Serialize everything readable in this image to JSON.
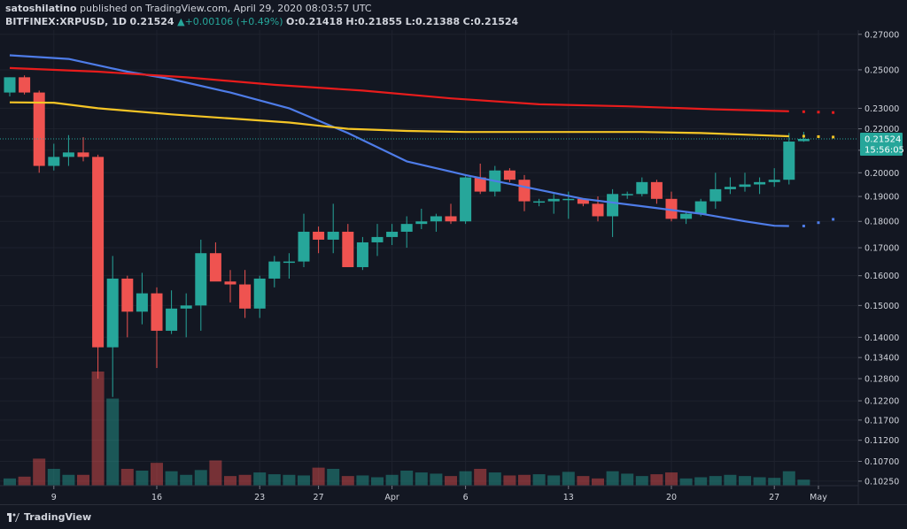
{
  "header": {
    "author": "satoshilatino",
    "published": "published on TradingView.com, April 29, 2020 08:03:57 UTC",
    "symbol": "BITFINEX:XRPUSD, 1D",
    "last": "0.21524",
    "change_arrow": "▲",
    "change": "+0.00106 (+0.49%)",
    "o_label": "O:",
    "o": "0.21418",
    "h_label": "H:",
    "h": "0.21855",
    "l_label": "L:",
    "l": "0.21388",
    "c_label": "C:",
    "c": "0.21524"
  },
  "footer": {
    "brand": "TradingView",
    "brand_icon": "tradingview-logo-icon"
  },
  "price_tag": {
    "price": "0.21524",
    "countdown": "15:56:05"
  },
  "colors": {
    "background": "#131722",
    "up": "#26a69a",
    "down": "#ef5350",
    "ma_fast": "#4e7ce8",
    "ma_mid": "#f5c526",
    "ma_slow": "#e81c1c",
    "grid": "#1e222d",
    "text": "#d1d4dc"
  },
  "chart_data": {
    "type": "candlestick",
    "price_axis": {
      "range": [
        0.1015,
        0.2725
      ],
      "scale": "log",
      "ticks": [
        "0.27000",
        "0.25000",
        "0.23000",
        "0.22000",
        "0.21000",
        "0.20000",
        "0.19000",
        "0.18000",
        "0.17000",
        "0.16000",
        "0.15000",
        "0.14000",
        "0.13400",
        "0.12800",
        "0.12200",
        "0.11700",
        "0.11200",
        "0.10700",
        "0.10250"
      ]
    },
    "time_axis": {
      "labels": [
        {
          "label": "9",
          "index": 3
        },
        {
          "label": "16",
          "index": 10
        },
        {
          "label": "23",
          "index": 17
        },
        {
          "label": "27",
          "index": 21
        },
        {
          "label": "Apr",
          "index": 26
        },
        {
          "label": "6",
          "index": 31
        },
        {
          "label": "13",
          "index": 38
        },
        {
          "label": "20",
          "index": 45
        },
        {
          "label": "27",
          "index": 52
        },
        {
          "label": "May",
          "index": 55
        }
      ],
      "bars_visible": 57
    },
    "candles": [
      {
        "o": 0.238,
        "h": 0.246,
        "l": 0.236,
        "c": 0.246
      },
      {
        "o": 0.246,
        "h": 0.247,
        "l": 0.237,
        "c": 0.238
      },
      {
        "o": 0.238,
        "h": 0.239,
        "l": 0.2,
        "c": 0.203
      },
      {
        "o": 0.203,
        "h": 0.213,
        "l": 0.201,
        "c": 0.207
      },
      {
        "o": 0.207,
        "h": 0.217,
        "l": 0.203,
        "c": 0.209
      },
      {
        "o": 0.209,
        "h": 0.216,
        "l": 0.205,
        "c": 0.207
      },
      {
        "o": 0.207,
        "h": 0.208,
        "l": 0.128,
        "c": 0.137
      },
      {
        "o": 0.137,
        "h": 0.167,
        "l": 0.123,
        "c": 0.159
      },
      {
        "o": 0.159,
        "h": 0.16,
        "l": 0.14,
        "c": 0.148
      },
      {
        "o": 0.148,
        "h": 0.161,
        "l": 0.144,
        "c": 0.154
      },
      {
        "o": 0.154,
        "h": 0.156,
        "l": 0.131,
        "c": 0.142
      },
      {
        "o": 0.142,
        "h": 0.155,
        "l": 0.141,
        "c": 0.149
      },
      {
        "o": 0.149,
        "h": 0.154,
        "l": 0.14,
        "c": 0.15
      },
      {
        "o": 0.15,
        "h": 0.173,
        "l": 0.142,
        "c": 0.168
      },
      {
        "o": 0.168,
        "h": 0.172,
        "l": 0.159,
        "c": 0.158
      },
      {
        "o": 0.158,
        "h": 0.162,
        "l": 0.151,
        "c": 0.157
      },
      {
        "o": 0.157,
        "h": 0.162,
        "l": 0.146,
        "c": 0.149
      },
      {
        "o": 0.149,
        "h": 0.16,
        "l": 0.146,
        "c": 0.159
      },
      {
        "o": 0.159,
        "h": 0.167,
        "l": 0.156,
        "c": 0.165
      },
      {
        "o": 0.165,
        "h": 0.168,
        "l": 0.159,
        "c": 0.165
      },
      {
        "o": 0.165,
        "h": 0.183,
        "l": 0.163,
        "c": 0.176
      },
      {
        "o": 0.176,
        "h": 0.178,
        "l": 0.168,
        "c": 0.173
      },
      {
        "o": 0.173,
        "h": 0.187,
        "l": 0.168,
        "c": 0.176
      },
      {
        "o": 0.176,
        "h": 0.179,
        "l": 0.163,
        "c": 0.163
      },
      {
        "o": 0.163,
        "h": 0.174,
        "l": 0.162,
        "c": 0.172
      },
      {
        "o": 0.172,
        "h": 0.179,
        "l": 0.167,
        "c": 0.174
      },
      {
        "o": 0.174,
        "h": 0.179,
        "l": 0.171,
        "c": 0.176
      },
      {
        "o": 0.176,
        "h": 0.182,
        "l": 0.17,
        "c": 0.179
      },
      {
        "o": 0.179,
        "h": 0.185,
        "l": 0.177,
        "c": 0.18
      },
      {
        "o": 0.18,
        "h": 0.183,
        "l": 0.176,
        "c": 0.182
      },
      {
        "o": 0.182,
        "h": 0.187,
        "l": 0.179,
        "c": 0.18
      },
      {
        "o": 0.18,
        "h": 0.199,
        "l": 0.179,
        "c": 0.198
      },
      {
        "o": 0.198,
        "h": 0.204,
        "l": 0.191,
        "c": 0.192
      },
      {
        "o": 0.192,
        "h": 0.203,
        "l": 0.19,
        "c": 0.201
      },
      {
        "o": 0.201,
        "h": 0.202,
        "l": 0.196,
        "c": 0.197
      },
      {
        "o": 0.197,
        "h": 0.199,
        "l": 0.184,
        "c": 0.188
      },
      {
        "o": 0.188,
        "h": 0.189,
        "l": 0.186,
        "c": 0.188
      },
      {
        "o": 0.188,
        "h": 0.191,
        "l": 0.183,
        "c": 0.189
      },
      {
        "o": 0.189,
        "h": 0.192,
        "l": 0.181,
        "c": 0.189
      },
      {
        "o": 0.189,
        "h": 0.189,
        "l": 0.186,
        "c": 0.187
      },
      {
        "o": 0.187,
        "h": 0.19,
        "l": 0.18,
        "c": 0.182
      },
      {
        "o": 0.182,
        "h": 0.193,
        "l": 0.174,
        "c": 0.191
      },
      {
        "o": 0.191,
        "h": 0.192,
        "l": 0.189,
        "c": 0.191
      },
      {
        "o": 0.191,
        "h": 0.198,
        "l": 0.19,
        "c": 0.196
      },
      {
        "o": 0.196,
        "h": 0.197,
        "l": 0.187,
        "c": 0.189
      },
      {
        "o": 0.189,
        "h": 0.192,
        "l": 0.18,
        "c": 0.181
      },
      {
        "o": 0.181,
        "h": 0.184,
        "l": 0.179,
        "c": 0.183
      },
      {
        "o": 0.183,
        "h": 0.189,
        "l": 0.182,
        "c": 0.188
      },
      {
        "o": 0.188,
        "h": 0.2,
        "l": 0.185,
        "c": 0.193
      },
      {
        "o": 0.193,
        "h": 0.198,
        "l": 0.191,
        "c": 0.194
      },
      {
        "o": 0.194,
        "h": 0.2,
        "l": 0.192,
        "c": 0.195
      },
      {
        "o": 0.195,
        "h": 0.198,
        "l": 0.191,
        "c": 0.196
      },
      {
        "o": 0.196,
        "h": 0.202,
        "l": 0.194,
        "c": 0.197
      },
      {
        "o": 0.197,
        "h": 0.218,
        "l": 0.195,
        "c": 0.214
      },
      {
        "o": 0.21418,
        "h": 0.21855,
        "l": 0.21388,
        "c": 0.21524
      }
    ],
    "volume": [
      0.12,
      0.15,
      0.45,
      0.28,
      0.18,
      0.18,
      1.9,
      1.45,
      0.28,
      0.25,
      0.38,
      0.24,
      0.18,
      0.26,
      0.42,
      0.16,
      0.18,
      0.22,
      0.19,
      0.18,
      0.17,
      0.3,
      0.28,
      0.16,
      0.17,
      0.14,
      0.18,
      0.25,
      0.22,
      0.2,
      0.16,
      0.24,
      0.28,
      0.22,
      0.17,
      0.18,
      0.19,
      0.17,
      0.23,
      0.16,
      0.12,
      0.24,
      0.2,
      0.16,
      0.19,
      0.22,
      0.12,
      0.14,
      0.16,
      0.18,
      0.16,
      0.14,
      0.13,
      0.24,
      0.1
    ],
    "moving_averages": [
      {
        "color": "#4e7ce8",
        "points": [
          [
            0,
            0.258
          ],
          [
            4,
            0.256
          ],
          [
            8,
            0.249
          ],
          [
            11,
            0.245
          ],
          [
            15,
            0.238
          ],
          [
            19,
            0.23
          ],
          [
            23,
            0.218
          ],
          [
            27,
            0.205
          ],
          [
            31,
            0.199
          ],
          [
            35,
            0.194
          ],
          [
            39,
            0.189
          ],
          [
            43,
            0.186
          ],
          [
            47,
            0.183
          ],
          [
            50,
            0.18
          ],
          [
            52,
            0.1783
          ],
          [
            53,
            0.1782
          ]
        ],
        "projection": [
          [
            54,
            0.1782
          ],
          [
            55,
            0.1795
          ],
          [
            56,
            0.1808
          ]
        ]
      },
      {
        "color": "#f5c526",
        "points": [
          [
            0,
            0.233
          ],
          [
            3,
            0.2328
          ],
          [
            6,
            0.23
          ],
          [
            11,
            0.227
          ],
          [
            15,
            0.225
          ],
          [
            19,
            0.223
          ],
          [
            23,
            0.22
          ],
          [
            27,
            0.219
          ],
          [
            31,
            0.2185
          ],
          [
            35,
            0.2185
          ],
          [
            39,
            0.2185
          ],
          [
            43,
            0.2185
          ],
          [
            47,
            0.218
          ],
          [
            51,
            0.217
          ],
          [
            53,
            0.2165
          ]
        ],
        "projection": [
          [
            54,
            0.2165
          ],
          [
            55,
            0.2163
          ],
          [
            56,
            0.2161
          ]
        ]
      },
      {
        "color": "#e81c1c",
        "points": [
          [
            0,
            0.251
          ],
          [
            6,
            0.249
          ],
          [
            12,
            0.246
          ],
          [
            18,
            0.242
          ],
          [
            24,
            0.239
          ],
          [
            30,
            0.235
          ],
          [
            36,
            0.232
          ],
          [
            42,
            0.231
          ],
          [
            48,
            0.2295
          ],
          [
            53,
            0.2285
          ]
        ],
        "projection": [
          [
            54,
            0.2283
          ],
          [
            55,
            0.2281
          ],
          [
            56,
            0.2279
          ]
        ]
      }
    ]
  }
}
